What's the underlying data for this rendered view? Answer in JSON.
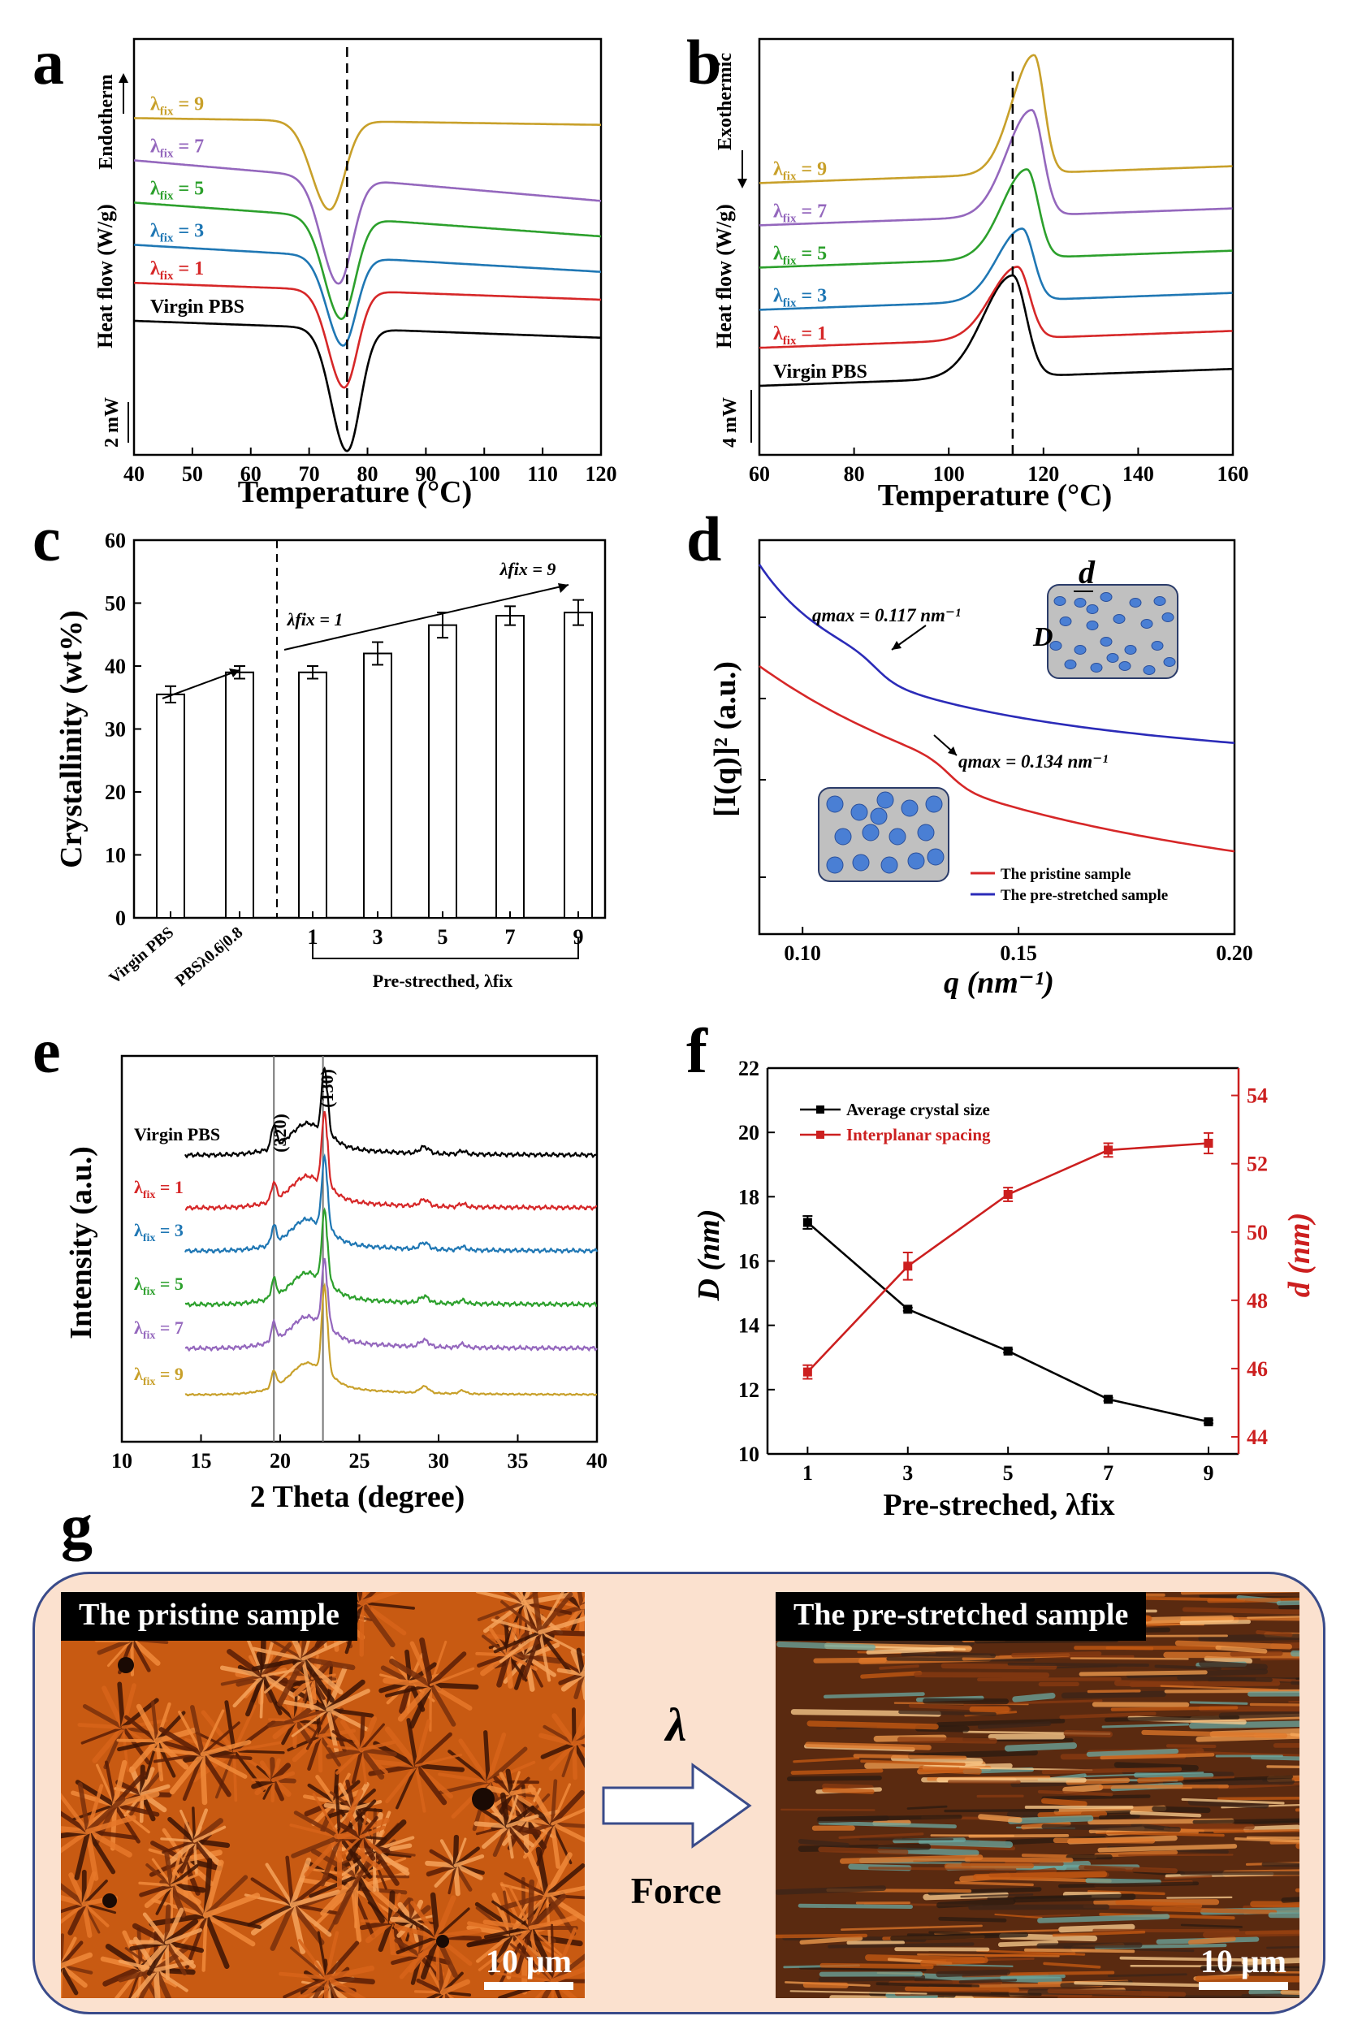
{
  "panel_labels": {
    "a": "a",
    "b": "b",
    "c": "c",
    "d": "d",
    "e": "e",
    "f": "f",
    "g": "g"
  },
  "chart_data": [
    {
      "id": "a",
      "type": "line",
      "xlabel": "Temperature (°C)",
      "ylabel": "Heat flow (W/g)",
      "direction_label": "Endotherm",
      "scale_label": "2 mW",
      "xlim": [
        40,
        120
      ],
      "xticks": [
        40,
        50,
        60,
        70,
        80,
        90,
        100,
        110,
        120
      ],
      "reference_line_x": 76.5,
      "series": [
        {
          "name": "Virgin PBS",
          "color": "#000000",
          "offset": 0,
          "peak_x": 76.5,
          "depth": 2.9,
          "width": 3.2,
          "tail": -0.05
        },
        {
          "name": "λfix = 1",
          "color": "#d62728",
          "offset": 0.9,
          "peak_x": 76.0,
          "depth": 2.3,
          "width": 3.2,
          "tail": -0.05
        },
        {
          "name": "λfix = 3",
          "color": "#1f77b4",
          "offset": 1.8,
          "peak_x": 75.8,
          "depth": 2.1,
          "width": 3.2,
          "tail": -0.08
        },
        {
          "name": "λfix = 5",
          "color": "#2ca02c",
          "offset": 2.8,
          "peak_x": 75.5,
          "depth": 2.4,
          "width": 3.4,
          "tail": -0.1
        },
        {
          "name": "λfix = 7",
          "color": "#9467bd",
          "offset": 3.8,
          "peak_x": 75.0,
          "depth": 2.5,
          "width": 3.4,
          "tail": -0.12
        },
        {
          "name": "λfix = 9",
          "color": "#c8a02a",
          "offset": 4.8,
          "peak_x": 73.5,
          "depth": 2.1,
          "width": 3.6,
          "tail": -0.02
        }
      ]
    },
    {
      "id": "b",
      "type": "line",
      "xlabel": "Temperature (°C)",
      "ylabel": "Heat flow (W/g)",
      "direction_label": "Exothermic",
      "scale_label": "4 mW",
      "xlim": [
        60,
        160
      ],
      "xticks": [
        60,
        80,
        100,
        120,
        140,
        160
      ],
      "reference_line_x": 113.5,
      "series": [
        {
          "name": "Virgin PBS",
          "color": "#000000",
          "offset": 0,
          "peak_x": 113.5,
          "height": 2.4,
          "width": 4.0
        },
        {
          "name": "λfix = 1",
          "color": "#d62728",
          "offset": 0.9,
          "peak_x": 114.5,
          "height": 1.7,
          "width": 3.6
        },
        {
          "name": "λfix = 3",
          "color": "#1f77b4",
          "offset": 1.8,
          "peak_x": 115.5,
          "height": 1.7,
          "width": 3.4
        },
        {
          "name": "λfix = 5",
          "color": "#2ca02c",
          "offset": 2.8,
          "peak_x": 116.5,
          "height": 2.1,
          "width": 3.4
        },
        {
          "name": "λfix = 7",
          "color": "#9467bd",
          "offset": 3.8,
          "peak_x": 117.5,
          "height": 2.5,
          "width": 3.4
        },
        {
          "name": "λfix = 9",
          "color": "#c8a02a",
          "offset": 4.8,
          "peak_x": 118.0,
          "height": 2.8,
          "width": 3.0
        }
      ]
    },
    {
      "id": "c",
      "type": "bar",
      "ylabel": "Crystallinity (wt%)",
      "ylim": [
        0,
        60
      ],
      "yticks": [
        0,
        10,
        20,
        30,
        40,
        50,
        60
      ],
      "categories": [
        "Virgin PBS",
        "PBSλ0.6|0.8",
        "1",
        "3",
        "5",
        "7",
        "9"
      ],
      "values": [
        35.5,
        39.0,
        39.0,
        42.0,
        46.5,
        48.0,
        48.5
      ],
      "errors": [
        1.3,
        1.0,
        1.0,
        1.8,
        2.0,
        1.5,
        2.0
      ],
      "group_label": "Pre-strecthed, λfix",
      "annotation_start": "λfix = 1",
      "annotation_end": "λfix = 9"
    },
    {
      "id": "d",
      "type": "line",
      "xlabel": "q (nm⁻¹)",
      "ylabel": "[I(q)]² (a.u.)",
      "xlim": [
        0.09,
        0.2
      ],
      "xticks": [
        "0.10",
        "0.15",
        "0.20"
      ],
      "annotation_blue": "qmax = 0.117 nm⁻¹",
      "annotation_red": "qmax = 0.134 nm⁻¹",
      "inset_labels": [
        "d",
        "D"
      ],
      "series": [
        {
          "name": "The pristine sample",
          "color": "#d62728"
        },
        {
          "name": "The pre-stretched sample",
          "color": "#2b2bb8"
        }
      ]
    },
    {
      "id": "e",
      "type": "line",
      "xlabel": "2 Theta (degree)",
      "ylabel": "Intensity (a.u.)",
      "xlim": [
        10,
        40
      ],
      "xticks": [
        10,
        15,
        20,
        25,
        30,
        35,
        40
      ],
      "peak_labels": [
        "(320)",
        "(130)"
      ],
      "peak_positions": [
        19.6,
        22.7
      ],
      "series": [
        {
          "name": "Virgin PBS",
          "color": "#000000"
        },
        {
          "name": "λfix = 1",
          "color": "#d62728"
        },
        {
          "name": "λfix = 3",
          "color": "#1f77b4"
        },
        {
          "name": "λfix = 5",
          "color": "#2ca02c"
        },
        {
          "name": "λfix = 7",
          "color": "#9467bd"
        },
        {
          "name": "λfix = 9",
          "color": "#c8a02a"
        }
      ]
    },
    {
      "id": "f",
      "type": "line",
      "xlabel": "Pre-streched, λfix",
      "ylabel_left": "D (nm)",
      "ylabel_right": "d (nm)",
      "x": [
        1,
        3,
        5,
        7,
        9
      ],
      "xlim": [
        0.2,
        9.6
      ],
      "ylim_left": [
        10,
        22
      ],
      "ylim_right": [
        43.5,
        54.8
      ],
      "yticks_left": [
        10,
        12,
        14,
        16,
        18,
        20,
        22
      ],
      "yticks_right": [
        44,
        46,
        48,
        50,
        52,
        54
      ],
      "series": [
        {
          "name": "Average crystal size",
          "color": "#000000",
          "axis": "left",
          "values": [
            17.2,
            14.5,
            13.2,
            11.7,
            11.0
          ],
          "errors": [
            0.2,
            0.05,
            0.05,
            0.05,
            0.05
          ]
        },
        {
          "name": "Interplanar spacing",
          "color": "#cc1f1f",
          "axis": "right",
          "values": [
            45.9,
            49.0,
            51.1,
            52.4,
            52.6
          ],
          "errors": [
            0.2,
            0.4,
            0.2,
            0.2,
            0.3
          ]
        }
      ]
    }
  ],
  "panel_g": {
    "left_label": "The pristine sample",
    "right_label": "The pre-stretched sample",
    "scale_left": "10 μm",
    "scale_right": "10 μm",
    "arrow_symbol": "λ",
    "arrow_text": "Force"
  }
}
